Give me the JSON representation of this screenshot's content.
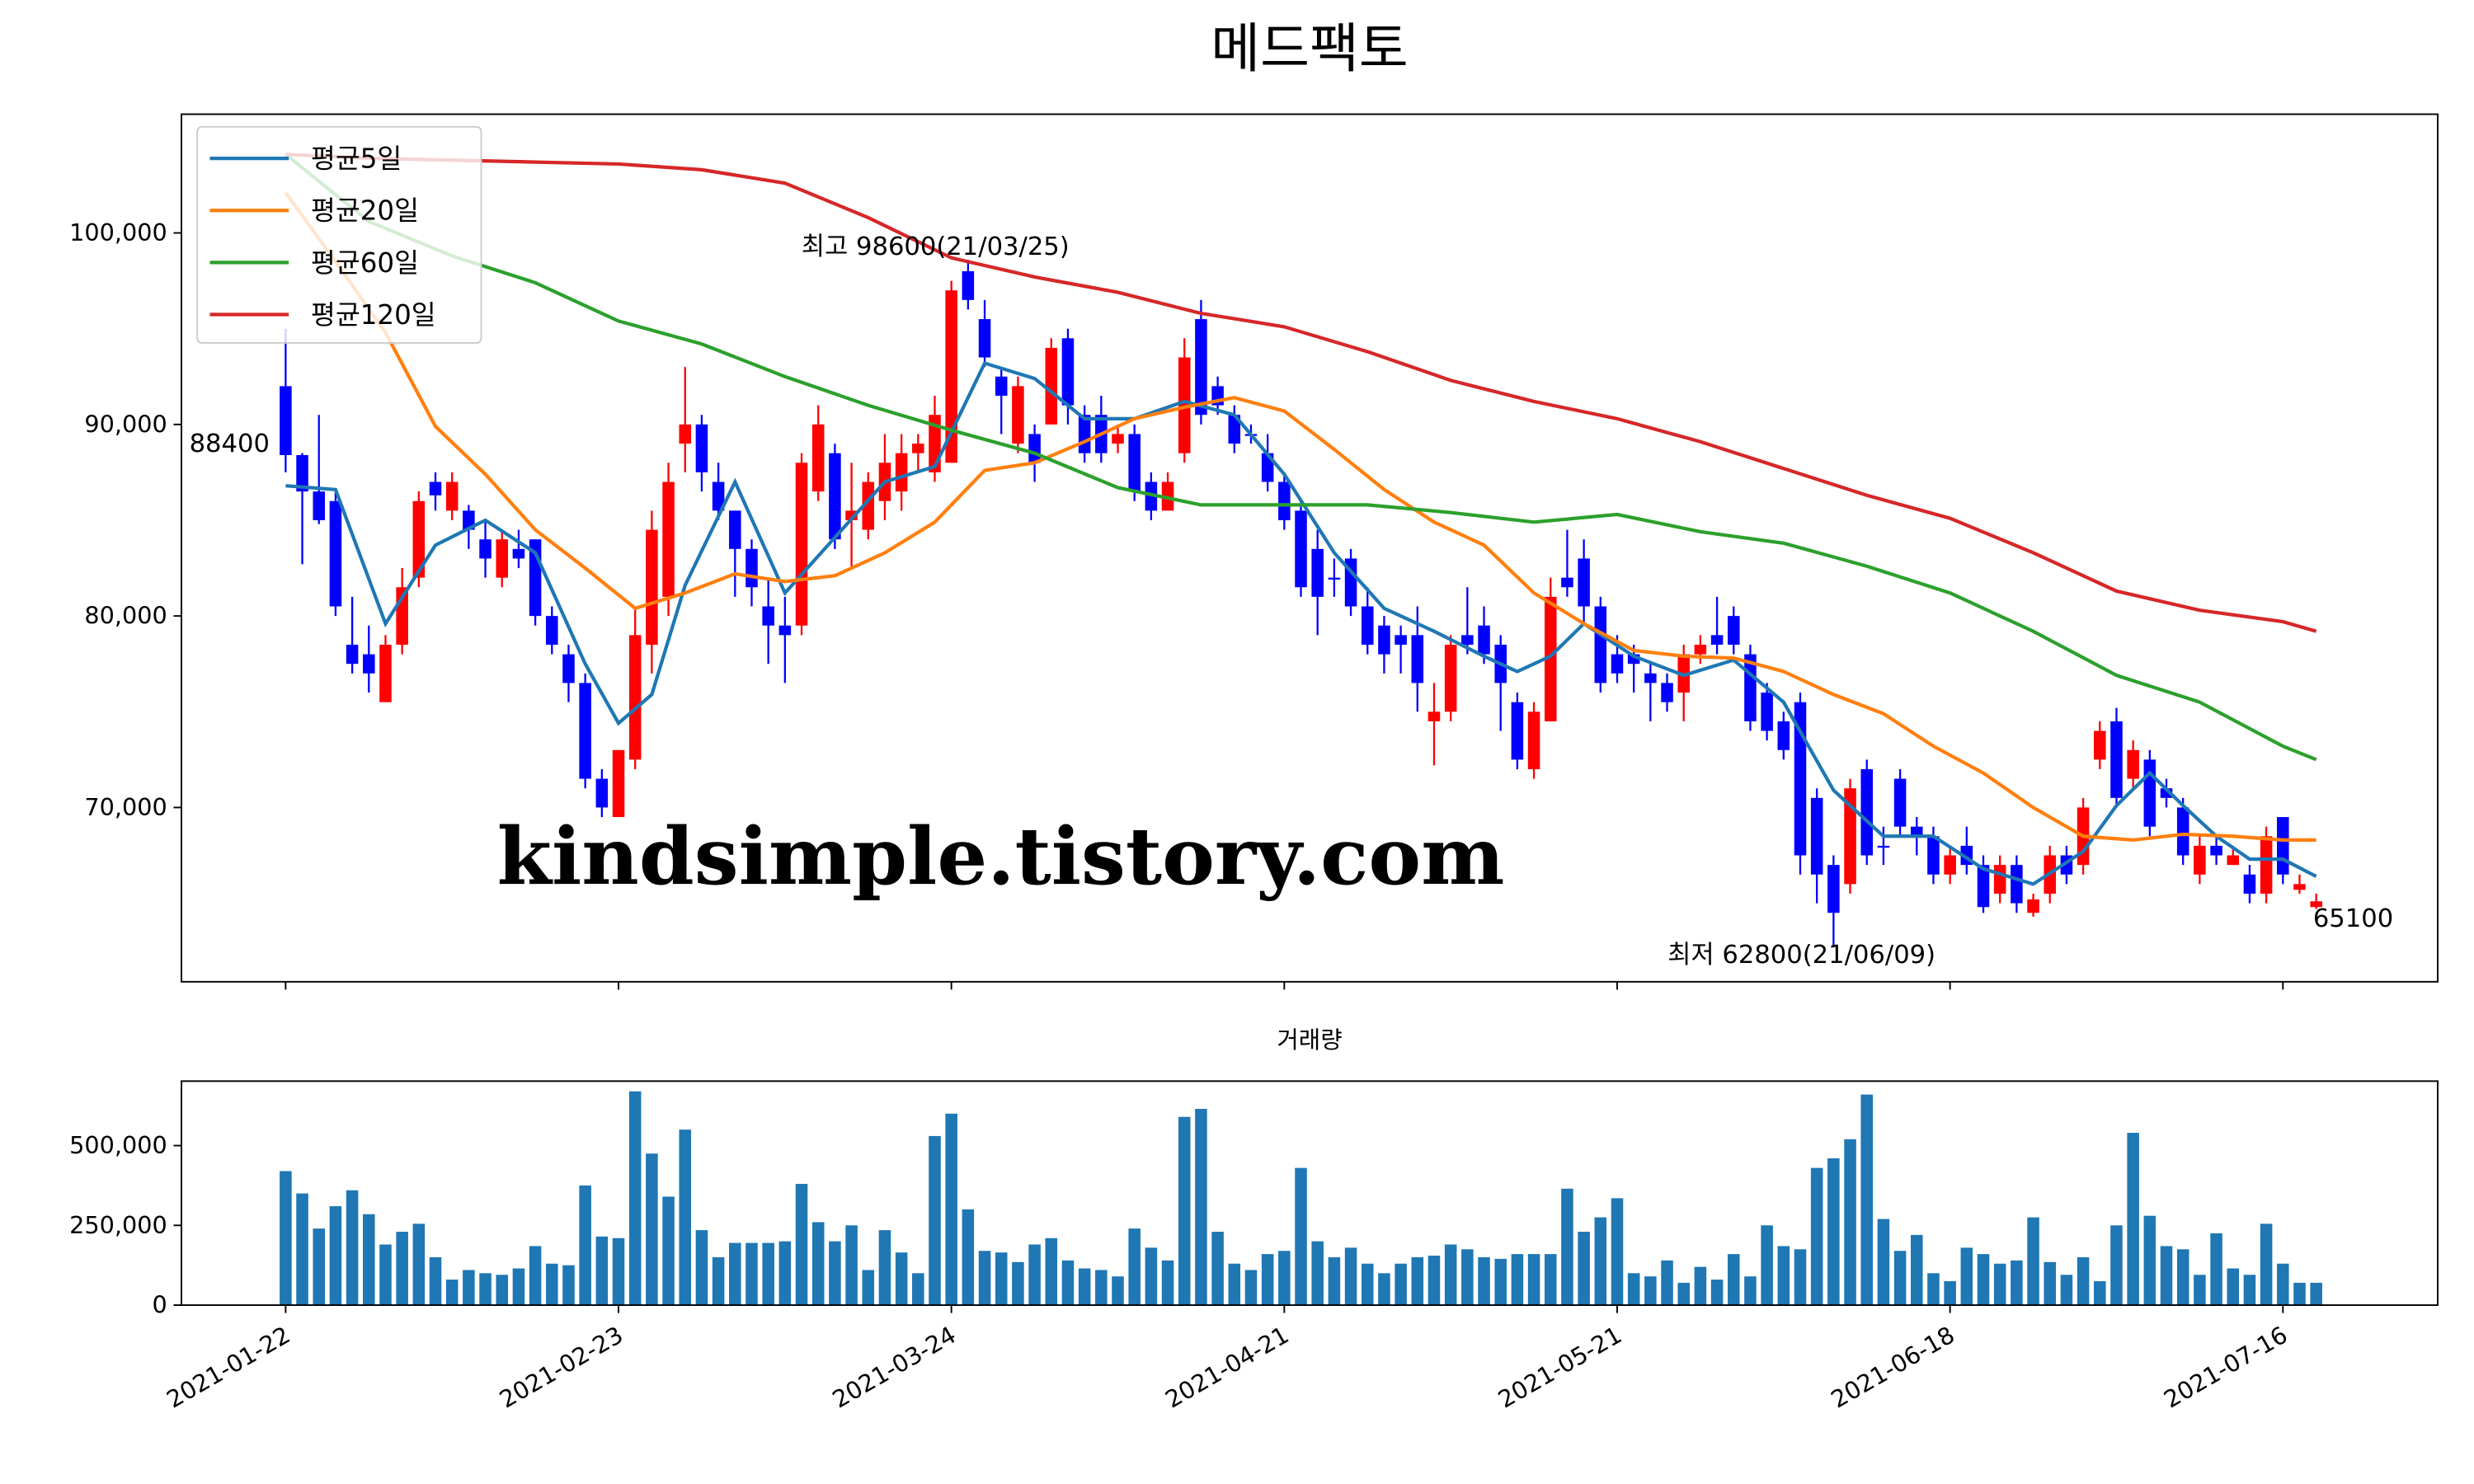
{
  "chart_data": [
    {
      "type": "candlestick",
      "title": "메드팩토",
      "xlim": [
        -6.26,
        129.3
      ],
      "ylim": [
        60900,
        106200
      ],
      "yticks": [
        {
          "value": 70000,
          "label": "70,000"
        },
        {
          "value": 80000,
          "label": "80,000"
        },
        {
          "value": 90000,
          "label": "90,000"
        },
        {
          "value": 100000,
          "label": "100,000"
        }
      ],
      "up_color": "#ff0000",
      "down_color": "#0000ff",
      "legend": "upper left",
      "open": [
        92000,
        88400,
        86500,
        86000,
        78500,
        78000,
        75500,
        78500,
        82000,
        87000,
        85500,
        85500,
        84000,
        82000,
        83500,
        84000,
        80000,
        78000,
        76500,
        71500,
        69500,
        72500,
        78500,
        81000,
        89000,
        90000,
        87000,
        85500,
        83500,
        80500,
        79500,
        79500,
        86500,
        88500,
        85000,
        84500,
        86000,
        86500,
        88500,
        87500,
        88000,
        98000,
        95500,
        92500,
        89000,
        89500,
        90000,
        94500,
        90500,
        90500,
        89000,
        89500,
        87000,
        85500,
        88500,
        95500,
        92000,
        90500,
        89500,
        88500,
        87000,
        85500,
        83500,
        82000,
        83000,
        80500,
        79500,
        79000,
        79000,
        74500,
        75000,
        79000,
        79500,
        78500,
        75500,
        72000,
        74500,
        82000,
        83000,
        80500,
        78000,
        78000,
        77000,
        76500,
        76000,
        78000,
        79000,
        80000,
        78000,
        76000,
        74500,
        75500,
        70500,
        67000,
        66000,
        72000,
        68000,
        71500,
        69000,
        68500,
        66500,
        68000,
        67000,
        65500,
        67000,
        64500,
        65500,
        67500,
        67000,
        72500,
        74500,
        71500,
        72500,
        71000,
        70000,
        66500,
        68000,
        67000,
        66500,
        65500,
        69500,
        65700,
        64800
      ],
      "high": [
        95000,
        88500,
        90500,
        86500,
        81000,
        79500,
        79000,
        82500,
        86500,
        87500,
        87500,
        85800,
        85000,
        84500,
        84500,
        84000,
        80500,
        78500,
        77000,
        72000,
        73000,
        80500,
        85500,
        88000,
        93000,
        90500,
        88000,
        85500,
        84000,
        82000,
        81000,
        88500,
        91000,
        89000,
        88000,
        87500,
        89500,
        89500,
        89500,
        91500,
        97500,
        98600,
        96500,
        93000,
        92500,
        90000,
        94500,
        95000,
        91000,
        91500,
        90000,
        90000,
        87500,
        87500,
        94500,
        96500,
        92500,
        91000,
        90000,
        89500,
        87500,
        86000,
        84500,
        83000,
        83500,
        81500,
        80000,
        79500,
        80500,
        76500,
        79000,
        81500,
        80500,
        79000,
        76000,
        75500,
        82000,
        84500,
        84000,
        81000,
        79000,
        78500,
        77500,
        77000,
        78500,
        79000,
        81000,
        80500,
        78500,
        76500,
        75000,
        76000,
        71000,
        67500,
        71500,
        72500,
        69000,
        72000,
        69500,
        69000,
        68000,
        69000,
        67500,
        67500,
        67500,
        65500,
        68000,
        68000,
        70500,
        74500,
        75200,
        73500,
        73000,
        71500,
        70500,
        68500,
        68500,
        68000,
        67000,
        69000,
        69500,
        66500,
        65500
      ],
      "low": [
        87500,
        82700,
        84800,
        80000,
        77000,
        76000,
        75500,
        78000,
        81500,
        85500,
        85000,
        83500,
        82000,
        81500,
        82500,
        79500,
        78000,
        75500,
        71000,
        69500,
        69500,
        72000,
        77000,
        80000,
        87500,
        86500,
        85000,
        81000,
        80500,
        77500,
        76500,
        79000,
        86000,
        83500,
        82500,
        84000,
        85000,
        85500,
        87500,
        87000,
        88000,
        96000,
        93000,
        89500,
        88500,
        87000,
        90000,
        90000,
        88000,
        88000,
        88500,
        86000,
        85000,
        85500,
        88000,
        90000,
        90500,
        88500,
        89000,
        86500,
        84500,
        81000,
        79000,
        81000,
        80000,
        78000,
        77000,
        77000,
        75000,
        72200,
        74500,
        78000,
        77500,
        74000,
        72000,
        71500,
        74500,
        81000,
        79500,
        76000,
        76500,
        76000,
        74500,
        75000,
        74500,
        77500,
        78000,
        78000,
        74000,
        73500,
        72500,
        66500,
        65000,
        62800,
        65500,
        67000,
        67000,
        68500,
        67500,
        66000,
        66000,
        66500,
        64500,
        65000,
        64500,
        64300,
        65000,
        66000,
        66500,
        72000,
        70000,
        71000,
        68500,
        70000,
        67000,
        66000,
        67000,
        67000,
        65000,
        65000,
        66000,
        65500,
        64700
      ],
      "close": [
        88400,
        86500,
        85000,
        80500,
        77500,
        77000,
        78500,
        81500,
        86000,
        86300,
        87000,
        84500,
        83000,
        84000,
        83000,
        80000,
        78500,
        76500,
        71500,
        70000,
        73000,
        79000,
        84500,
        87000,
        90000,
        87500,
        85500,
        83500,
        81500,
        79500,
        79000,
        88000,
        90000,
        84000,
        85500,
        87000,
        88000,
        88500,
        89000,
        90500,
        97000,
        96500,
        93500,
        91500,
        92000,
        88000,
        94000,
        91000,
        88500,
        88500,
        89500,
        86500,
        85500,
        87000,
        93500,
        90500,
        91000,
        89000,
        89500,
        87000,
        85000,
        81500,
        81000,
        82000,
        80500,
        78500,
        78000,
        78500,
        76500,
        75000,
        78500,
        78500,
        78000,
        76500,
        72500,
        75000,
        81000,
        81500,
        80500,
        76500,
        77000,
        77500,
        76500,
        75500,
        78000,
        78500,
        78500,
        78500,
        74500,
        74000,
        73000,
        67500,
        66500,
        64500,
        71000,
        67500,
        68000,
        69000,
        68500,
        66500,
        67500,
        67000,
        64800,
        67000,
        65000,
        65200,
        67500,
        66500,
        70000,
        74000,
        70500,
        73000,
        69000,
        70500,
        67500,
        68000,
        67500,
        67500,
        65500,
        68500,
        66500,
        66000,
        65100
      ],
      "series": [
        {
          "name": "평균5일",
          "color": "#1f77b4",
          "x": [
            0,
            3,
            6,
            9,
            12,
            15,
            18,
            20,
            22,
            24,
            27,
            30,
            33,
            36,
            39,
            42,
            45,
            48,
            51,
            54,
            57,
            60,
            63,
            66,
            69,
            72,
            74,
            76,
            78,
            81,
            84,
            87,
            90,
            93,
            96,
            99,
            102,
            105,
            108,
            110,
            112,
            114,
            116,
            118,
            120,
            122
          ],
          "values": [
            86800,
            86600,
            79600,
            83700,
            85000,
            83300,
            77500,
            74400,
            75900,
            81600,
            87000,
            81200,
            84100,
            87000,
            87800,
            93200,
            92400,
            90300,
            90300,
            91200,
            90500,
            87400,
            83300,
            80400,
            79200,
            77900,
            77100,
            77900,
            79600,
            77900,
            76900,
            77700,
            75500,
            70900,
            68500,
            68500,
            66800,
            66000,
            67700,
            70100,
            71800,
            70100,
            68500,
            67300,
            67300,
            66400
          ]
        },
        {
          "name": "평균20일",
          "color": "#ff7f0e",
          "x": [
            0,
            3,
            6,
            9,
            12,
            15,
            18,
            21,
            24,
            27,
            30,
            33,
            36,
            39,
            42,
            45,
            48,
            51,
            54,
            57,
            60,
            63,
            66,
            69,
            72,
            75,
            78,
            81,
            84,
            87,
            90,
            93,
            96,
            99,
            102,
            105,
            108,
            111,
            114,
            117,
            120,
            122
          ],
          "values": [
            102100,
            98500,
            94800,
            89900,
            87400,
            84500,
            82500,
            80400,
            81200,
            82200,
            81800,
            82100,
            83300,
            84900,
            87600,
            88000,
            89100,
            90300,
            90900,
            91400,
            90700,
            88700,
            86600,
            84900,
            83700,
            81200,
            79600,
            78200,
            77900,
            77800,
            77100,
            75900,
            74900,
            73200,
            71800,
            70000,
            68500,
            68300,
            68600,
            68500,
            68300,
            68300
          ]
        },
        {
          "name": "평균60일",
          "color": "#2ca02c",
          "x": [
            0,
            5,
            10,
            15,
            20,
            25,
            30,
            35,
            40,
            45,
            50,
            55,
            60,
            65,
            70,
            75,
            80,
            85,
            90,
            95,
            100,
            105,
            110,
            115,
            120,
            122
          ],
          "values": [
            104100,
            100600,
            98800,
            97400,
            95400,
            94200,
            92500,
            91000,
            89700,
            88500,
            86700,
            85800,
            85800,
            85800,
            85400,
            84900,
            85300,
            84400,
            83800,
            82600,
            81200,
            79200,
            76900,
            75500,
            73200,
            72500
          ]
        },
        {
          "name": "평균120일",
          "color": "#d62728",
          "x": [
            0,
            5,
            10,
            15,
            20,
            25,
            30,
            35,
            40,
            45,
            50,
            55,
            60,
            65,
            70,
            75,
            80,
            85,
            90,
            95,
            100,
            105,
            110,
            115,
            120,
            122
          ],
          "values": [
            104100,
            103900,
            103800,
            103700,
            103600,
            103300,
            102600,
            100800,
            98700,
            97700,
            96900,
            95800,
            95100,
            93800,
            92300,
            91200,
            90300,
            89100,
            87700,
            86300,
            85100,
            83300,
            81300,
            80300,
            79700,
            79200
          ]
        }
      ],
      "annotations": [
        {
          "text": "최고 98600(21/03/25)",
          "color": "#ff0000"
        },
        {
          "text": "최저 62800(21/06/09)",
          "color": "#0000ff"
        }
      ],
      "watermark": "kindsimple.tistory.com",
      "watermark_color": "#e4a3ef"
    },
    {
      "type": "bar",
      "title": "거래량",
      "color": "#1f77b4",
      "xlim": [
        -6.26,
        129.3
      ],
      "ylim": [
        0,
        702000
      ],
      "yticks": [
        0,
        {
          "value": 250000,
          "label": "250,000"
        },
        {
          "value": 500000,
          "label": "500,000"
        }
      ],
      "xticks": [
        {
          "value": 0,
          "label": "2021-01-22"
        },
        {
          "value": 20,
          "label": "2021-02-23"
        },
        {
          "value": 40,
          "label": "2021-03-24"
        },
        {
          "value": 60,
          "label": "2021-04-21"
        },
        {
          "value": 80,
          "label": "2021-05-21"
        },
        {
          "value": 100,
          "label": "2021-06-18"
        },
        {
          "value": 120,
          "label": "2021-07-16"
        }
      ],
      "values": [
        420000,
        350000,
        240000,
        310000,
        360000,
        285000,
        190000,
        230000,
        255000,
        150000,
        80000,
        110000,
        100000,
        95000,
        115000,
        185000,
        130000,
        125000,
        375000,
        215000,
        210000,
        670000,
        475000,
        340000,
        550000,
        235000,
        150000,
        195000,
        195000,
        195000,
        200000,
        380000,
        260000,
        200000,
        250000,
        110000,
        235000,
        165000,
        100000,
        530000,
        600000,
        300000,
        170000,
        165000,
        135000,
        190000,
        210000,
        140000,
        115000,
        110000,
        90000,
        240000,
        180000,
        140000,
        590000,
        615000,
        230000,
        130000,
        110000,
        160000,
        170000,
        430000,
        200000,
        150000,
        180000,
        130000,
        100000,
        130000,
        150000,
        155000,
        190000,
        175000,
        150000,
        145000,
        160000,
        160000,
        160000,
        365000,
        230000,
        275000,
        335000,
        100000,
        90000,
        140000,
        70000,
        120000,
        80000,
        160000,
        90000,
        250000,
        185000,
        175000,
        430000,
        460000,
        520000,
        660000,
        270000,
        170000,
        220000,
        100000,
        75000,
        180000,
        160000,
        130000,
        140000,
        275000,
        135000,
        95000,
        150000,
        75000,
        250000,
        540000,
        280000,
        185000,
        175000,
        95000,
        225000,
        115000,
        95000,
        255000,
        130000,
        70000,
        70000
      ]
    }
  ]
}
